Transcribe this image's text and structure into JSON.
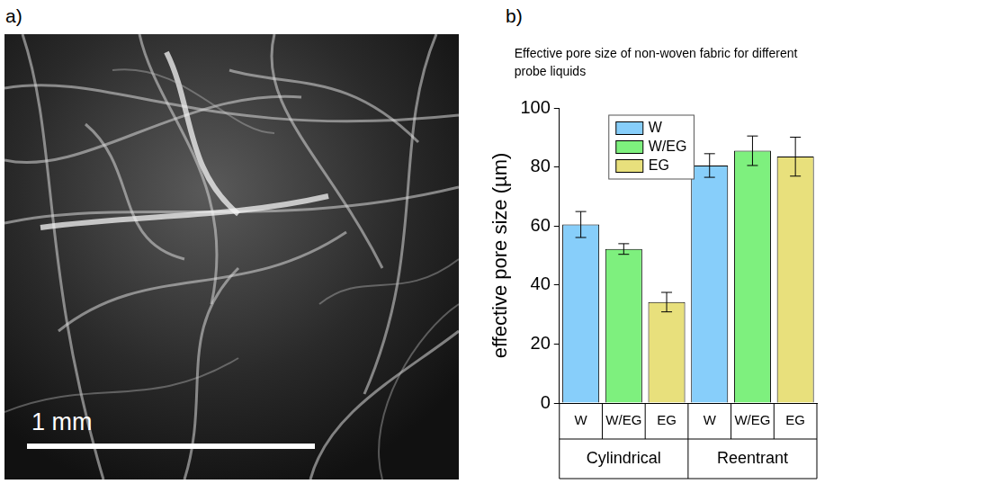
{
  "panel_labels": [
    "a)",
    "b)"
  ],
  "image": {
    "scale_bar": "1 mm"
  },
  "chart_data": {
    "type": "bar",
    "title": "Effective pore size of non-woven fabric for different probe liquids",
    "y_label": "effective pore size (µm)",
    "categories": [
      "Cylindrical",
      "Reentrant"
    ],
    "series": [
      {
        "name": "W",
        "color": "#87cefa",
        "values": [
          60.5,
          80.5
        ],
        "errors": [
          4.4,
          4.0
        ]
      },
      {
        "name": "W/EG",
        "color": "#7ef07e",
        "values": [
          52.2,
          85.5
        ],
        "errors": [
          1.8,
          5.0
        ]
      },
      {
        "name": "EG",
        "color": "#e8e07c",
        "values": [
          34.2,
          83.5
        ],
        "errors": [
          3.3,
          6.6
        ]
      }
    ],
    "ylim": [
      0,
      100
    ],
    "yticks": [
      0,
      20,
      40,
      60,
      80,
      100
    ],
    "grid": false,
    "legend": "upper left"
  }
}
